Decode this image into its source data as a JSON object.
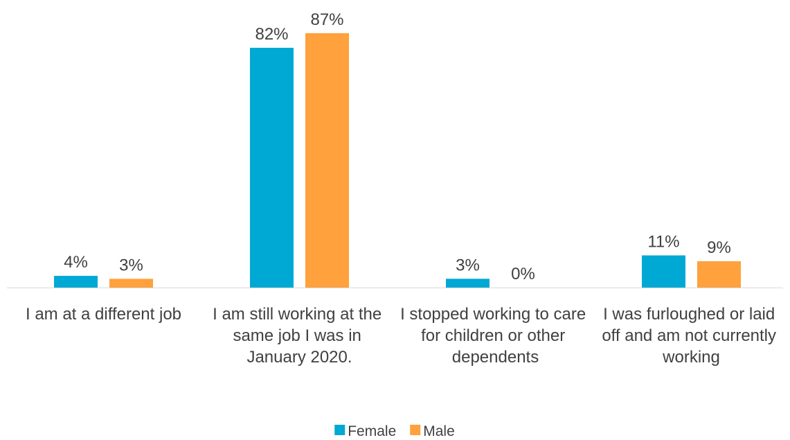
{
  "chart_data": {
    "type": "bar",
    "categories": [
      "I am at a different job",
      "I am still working at the same job I was in January 2020.",
      "I stopped working to care for children or other dependents",
      "I was furloughed or laid off and am not currently working"
    ],
    "series": [
      {
        "name": "Female",
        "color": "#00a8d4",
        "values": [
          4,
          82,
          3,
          11
        ],
        "value_labels": [
          "4%",
          "82%",
          "3%",
          "11%"
        ]
      },
      {
        "name": "Male",
        "color": "#ffa13c",
        "values": [
          3,
          87,
          0,
          9
        ],
        "value_labels": [
          "3%",
          "87%",
          "0%",
          "9%"
        ]
      }
    ],
    "legend": "bottom"
  }
}
